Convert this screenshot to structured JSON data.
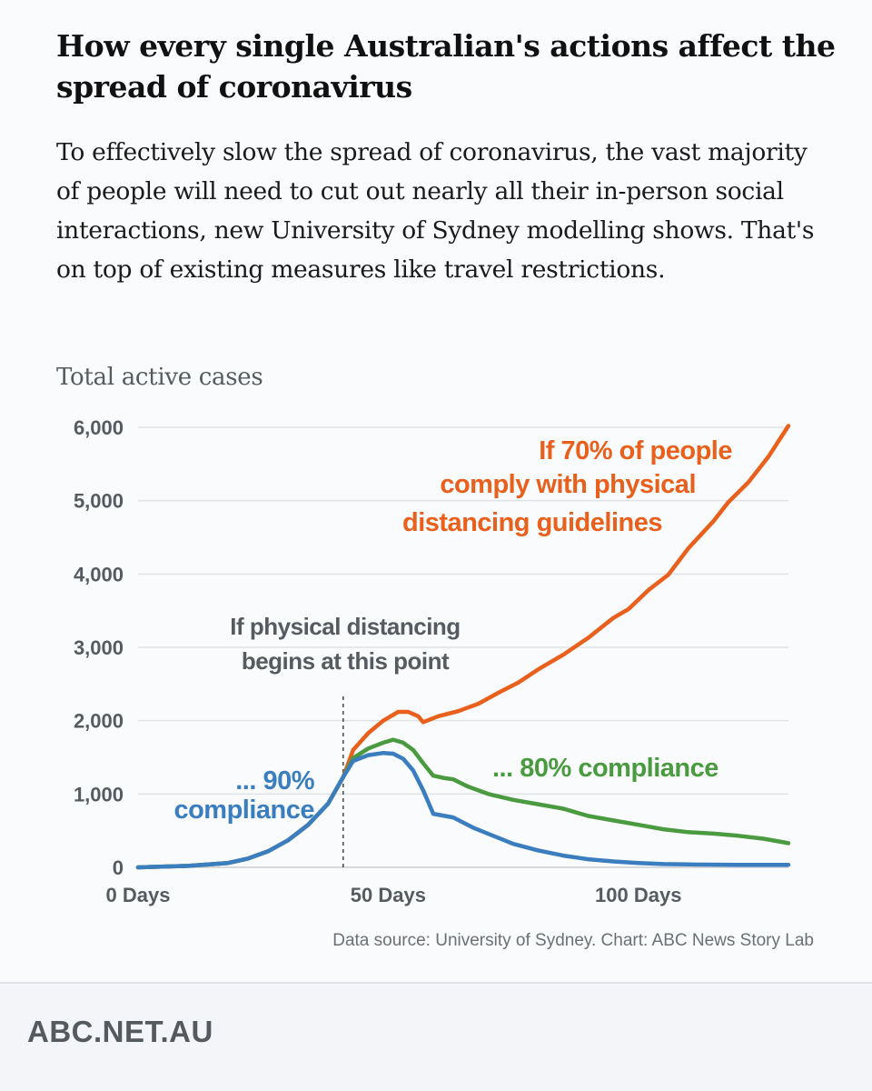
{
  "title": "How every single Australian's actions affect the spread of coronavirus",
  "subtitle": "To effectively slow the spread of coronavirus, the vast majority of people will need to cut out nearly all their in-person social interactions, new University of Sydney modelling shows. That's on top of existing measures like travel restrictions.",
  "source": "Data source: University of Sydney. Chart: ABC News Story Lab",
  "footer": {
    "brand": "ABC.NET.AU"
  },
  "colors": {
    "orange": "#e8601c",
    "green": "#4a9a3f",
    "blue": "#3a7ec0",
    "grid": "#dfe3e7",
    "text": "#555b60"
  },
  "chart_data": {
    "type": "line",
    "ylabel": "Total active cases",
    "ylim": [
      0,
      6000
    ],
    "xlim": [
      0,
      130
    ],
    "y_ticks": [
      0,
      1000,
      2000,
      3000,
      4000,
      5000,
      6000
    ],
    "y_tick_labels": [
      "0",
      "1,000",
      "2,000",
      "3,000",
      "4,000",
      "5,000",
      "6,000"
    ],
    "x_ticks": [
      0,
      50,
      100
    ],
    "x_tick_labels": [
      "0 Days",
      "50 Days",
      "100 Days"
    ],
    "grid": true,
    "vertical_marker": {
      "x": 41,
      "label_lines": [
        "If physical distancing",
        "begins at this point"
      ]
    },
    "series": [
      {
        "key": "orange",
        "label_lines": [
          "If 70% of people",
          "comply with physical",
          "distancing guidelines"
        ],
        "points": [
          [
            0,
            0
          ],
          [
            10,
            20
          ],
          [
            18,
            60
          ],
          [
            22,
            120
          ],
          [
            26,
            220
          ],
          [
            30,
            370
          ],
          [
            34,
            580
          ],
          [
            38,
            870
          ],
          [
            41,
            1230
          ],
          [
            43,
            1600
          ],
          [
            46,
            1830
          ],
          [
            49,
            2000
          ],
          [
            52,
            2120
          ],
          [
            54,
            2120
          ],
          [
            56,
            2060
          ],
          [
            57,
            1980
          ],
          [
            60,
            2060
          ],
          [
            64,
            2130
          ],
          [
            68,
            2230
          ],
          [
            72,
            2380
          ],
          [
            76,
            2520
          ],
          [
            80,
            2700
          ],
          [
            85,
            2900
          ],
          [
            90,
            3130
          ],
          [
            95,
            3400
          ],
          [
            98,
            3520
          ],
          [
            102,
            3780
          ],
          [
            106,
            3990
          ],
          [
            110,
            4350
          ],
          [
            115,
            4720
          ],
          [
            118,
            4980
          ],
          [
            122,
            5250
          ],
          [
            126,
            5600
          ],
          [
            130,
            6020
          ]
        ]
      },
      {
        "key": "green",
        "label_lines": [
          "... 80% compliance"
        ],
        "points": [
          [
            0,
            0
          ],
          [
            10,
            20
          ],
          [
            18,
            60
          ],
          [
            22,
            120
          ],
          [
            26,
            220
          ],
          [
            30,
            370
          ],
          [
            34,
            580
          ],
          [
            38,
            870
          ],
          [
            41,
            1230
          ],
          [
            43,
            1490
          ],
          [
            46,
            1620
          ],
          [
            49,
            1700
          ],
          [
            51,
            1740
          ],
          [
            53,
            1700
          ],
          [
            55,
            1600
          ],
          [
            57,
            1420
          ],
          [
            59,
            1250
          ],
          [
            61,
            1220
          ],
          [
            63,
            1200
          ],
          [
            66,
            1100
          ],
          [
            70,
            1000
          ],
          [
            75,
            920
          ],
          [
            80,
            860
          ],
          [
            85,
            800
          ],
          [
            90,
            700
          ],
          [
            95,
            640
          ],
          [
            100,
            580
          ],
          [
            105,
            520
          ],
          [
            110,
            480
          ],
          [
            115,
            460
          ],
          [
            120,
            430
          ],
          [
            125,
            390
          ],
          [
            130,
            330
          ]
        ]
      },
      {
        "key": "blue",
        "label_lines": [
          "... 90%",
          "compliance"
        ],
        "points": [
          [
            0,
            0
          ],
          [
            10,
            20
          ],
          [
            18,
            60
          ],
          [
            22,
            120
          ],
          [
            26,
            220
          ],
          [
            30,
            370
          ],
          [
            34,
            580
          ],
          [
            38,
            870
          ],
          [
            41,
            1230
          ],
          [
            43,
            1450
          ],
          [
            46,
            1530
          ],
          [
            49,
            1560
          ],
          [
            51,
            1550
          ],
          [
            53,
            1480
          ],
          [
            55,
            1320
          ],
          [
            57,
            1050
          ],
          [
            59,
            730
          ],
          [
            63,
            680
          ],
          [
            67,
            540
          ],
          [
            71,
            430
          ],
          [
            75,
            320
          ],
          [
            80,
            230
          ],
          [
            85,
            160
          ],
          [
            90,
            110
          ],
          [
            95,
            80
          ],
          [
            100,
            60
          ],
          [
            105,
            45
          ],
          [
            110,
            40
          ],
          [
            120,
            35
          ],
          [
            130,
            35
          ]
        ]
      }
    ]
  }
}
